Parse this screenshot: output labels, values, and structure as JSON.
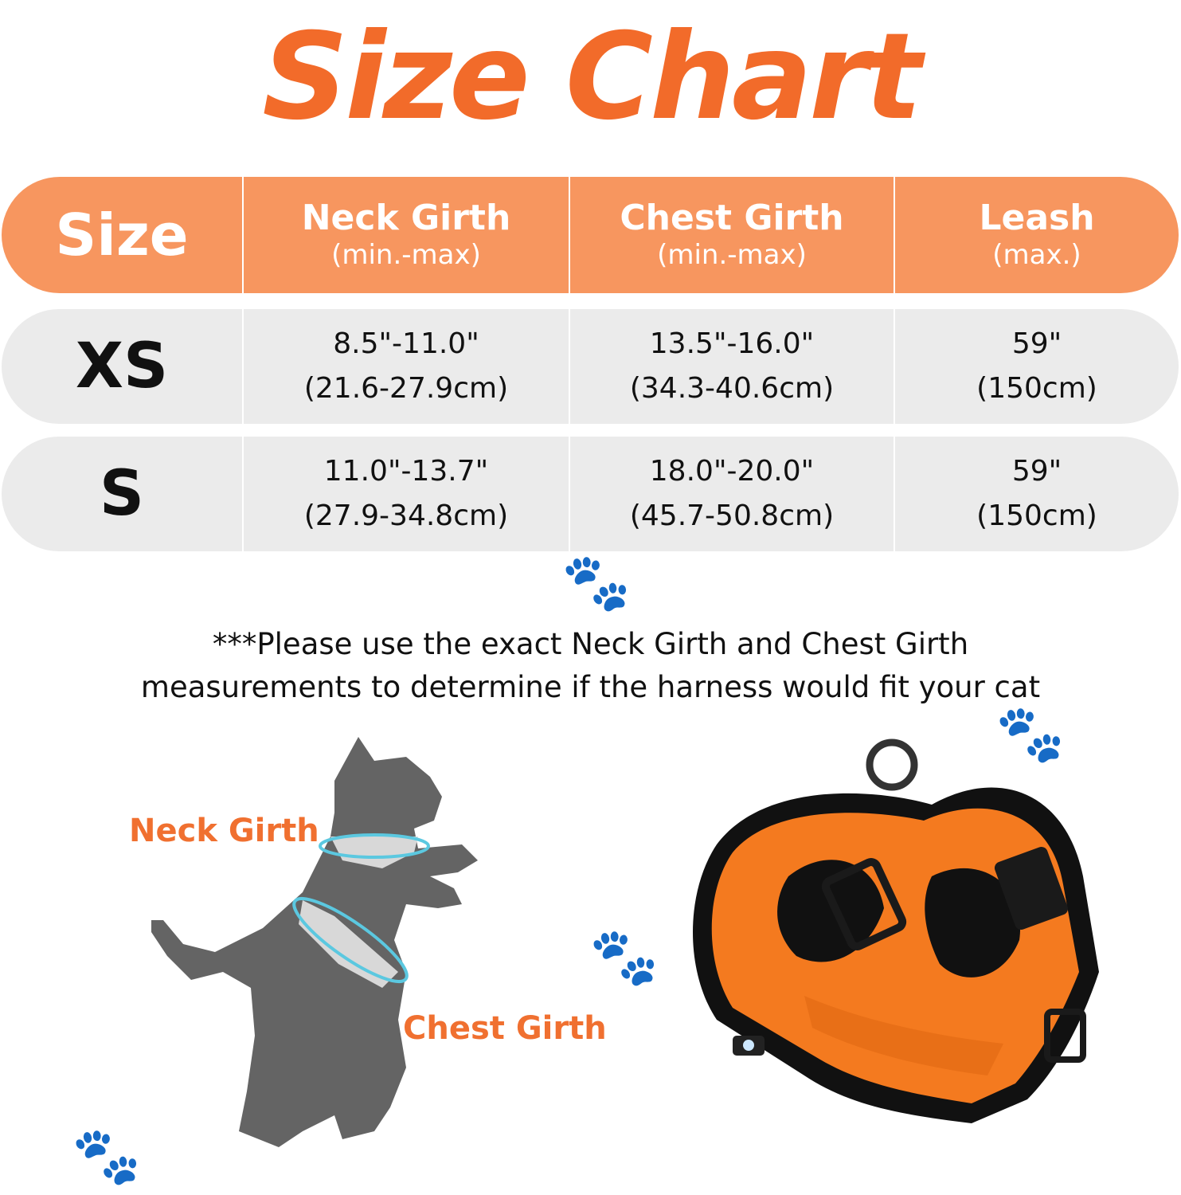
{
  "title": "Size Chart",
  "colors": {
    "accent": "#f26b2a",
    "header_bg": "#f7965f",
    "row_bg": "#ebebeb",
    "harness": "#f47a1f"
  },
  "table": {
    "headers": [
      {
        "main": "Size",
        "sub": ""
      },
      {
        "main": "Neck Girth",
        "sub": "(min.-max)"
      },
      {
        "main": "Chest Girth",
        "sub": "(min.-max)"
      },
      {
        "main": "Leash",
        "sub": "(max.)"
      }
    ],
    "rows": [
      {
        "size": "XS",
        "neck": [
          "8.5\"-11.0\"",
          "(21.6-27.9cm)"
        ],
        "chest": [
          "13.5\"-16.0\"",
          "(34.3-40.6cm)"
        ],
        "leash": [
          "59\"",
          "(150cm)"
        ]
      },
      {
        "size": "S",
        "neck": [
          "11.0\"-13.7\"",
          "(27.9-34.8cm)"
        ],
        "chest": [
          "18.0\"-20.0\"",
          "(45.7-50.8cm)"
        ],
        "leash": [
          "59\"",
          "(150cm)"
        ]
      }
    ]
  },
  "note": [
    "***Please use the exact Neck Girth and Chest Girth",
    "measurements to determine if the harness would fit your cat"
  ],
  "diagram": {
    "neck_label": "Neck Girth",
    "chest_label": "Chest Girth"
  }
}
